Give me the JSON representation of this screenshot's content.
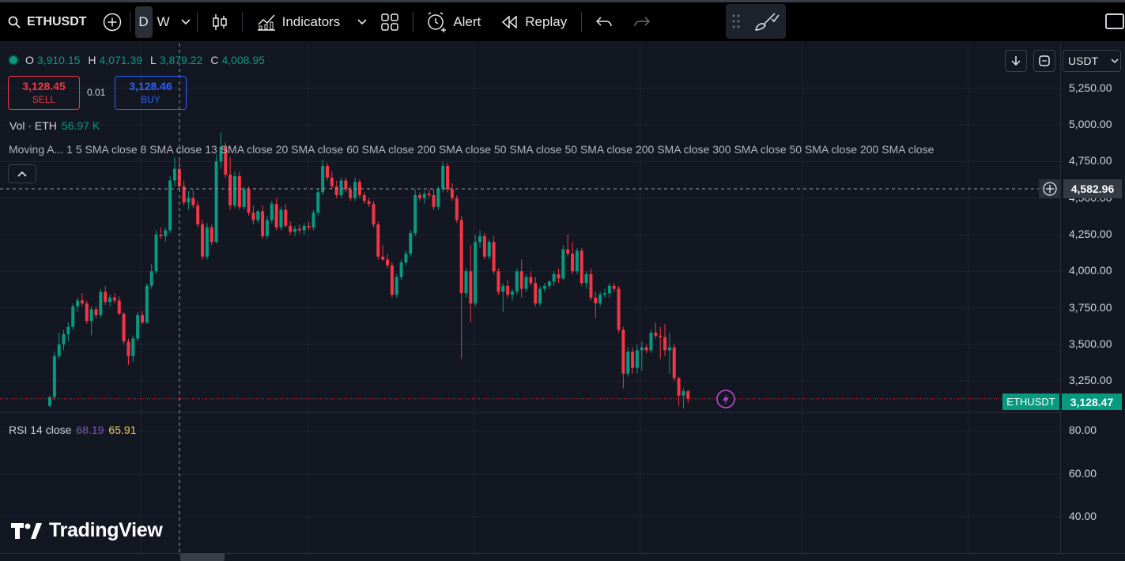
{
  "toolbar": {
    "symbol": "ETHUSDT",
    "interval_d": "D",
    "interval_w": "W",
    "indicators_label": "Indicators",
    "alert_label": "Alert",
    "replay_label": "Replay",
    "icons": [
      "search-icon",
      "add-symbol-icon",
      "chevron-down-icon",
      "candles-icon",
      "indicators-icon",
      "layouts-icon",
      "alert-icon",
      "replay-icon",
      "undo-icon",
      "redo-icon",
      "drag-handle-icon",
      "brush-icon",
      "window-icon"
    ]
  },
  "legend": {
    "ohlc": {
      "o_label": "O",
      "o_value": "3,910.15",
      "h_label": "H",
      "h_value": "4,071.39",
      "l_label": "L",
      "l_value": "3,879.22",
      "c_label": "C",
      "c_value": "4,008.95"
    },
    "sell_price": "3,128.45",
    "sell_label": "SELL",
    "spread": "0.01",
    "buy_price": "3,128.46",
    "buy_label": "BUY",
    "volume_label": "Vol · ETH",
    "volume_value": "56.97 K",
    "moving_averages": "Moving A...  1 5 SMA close 8 SMA close 13 SMA close 20 SMA close 60 SMA close 200 SMA close 50 SMA close 50 SMA close 200 SMA close 300 SMA close 50 SMA close 200 SMA close",
    "rsi_label": "RSI 14 close",
    "rsi_value_1": "68.19",
    "rsi_value_2": "65.91"
  },
  "price_scale": {
    "currency": "USDT",
    "ticks": [
      "5,250.00",
      "5,000.00",
      "4,750.00",
      "4,500.00",
      "4,250.00",
      "4,000.00",
      "3,750.00",
      "3,500.00",
      "3,250.00"
    ],
    "rsi_ticks": [
      "80.00",
      "60.00",
      "40.00"
    ],
    "crosshair_price": "4,582.96",
    "symbol_label": "ETHUSDT",
    "last_price": "3,128.47"
  },
  "brand": "TradingView",
  "colors": {
    "up": "#089981",
    "down": "#f23645",
    "background": "#131722",
    "grid": "#1f2330"
  },
  "chart_data": {
    "type": "candlestick",
    "x": [
      1,
      2,
      3,
      4,
      5,
      6,
      7,
      8,
      9,
      10,
      11,
      12,
      13,
      14,
      15,
      16,
      17,
      18,
      19,
      20,
      21,
      22,
      23,
      24,
      25,
      26,
      27,
      28,
      29,
      30,
      31,
      32,
      33,
      34,
      35,
      36,
      37,
      38,
      39,
      40,
      41,
      42,
      43,
      44,
      45,
      46,
      47,
      48,
      49,
      50,
      51,
      52,
      53,
      54,
      55,
      56,
      57,
      58,
      59,
      60,
      61,
      62,
      63,
      64,
      65,
      66,
      67,
      68,
      69,
      70,
      71,
      72,
      73,
      74,
      75,
      76,
      77,
      78,
      79,
      80,
      81,
      82,
      83,
      84,
      85,
      86,
      87,
      88,
      89,
      90,
      91,
      92,
      93,
      94,
      95,
      96,
      97,
      98,
      99,
      100,
      101,
      102,
      103,
      104,
      105,
      106,
      107,
      108,
      109,
      110,
      111,
      112,
      113,
      114,
      115,
      116,
      117,
      118,
      119,
      120,
      121,
      122,
      123,
      124,
      125,
      126,
      127,
      128,
      129,
      130,
      131,
      132,
      133,
      134,
      135,
      136,
      137,
      138,
      139,
      140,
      141,
      142,
      143,
      144,
      145,
      146,
      147
    ],
    "series": [
      {
        "values": [
          [
            3080,
            3150,
            3070,
            3140
          ],
          [
            3140,
            3450,
            3120,
            3420
          ],
          [
            3420,
            3580,
            3400,
            3500
          ],
          [
            3500,
            3600,
            3460,
            3570
          ],
          [
            3570,
            3650,
            3520,
            3620
          ],
          [
            3620,
            3780,
            3600,
            3760
          ],
          [
            3760,
            3820,
            3720,
            3800
          ],
          [
            3800,
            3850,
            3760,
            3780
          ],
          [
            3780,
            3800,
            3640,
            3660
          ],
          [
            3660,
            3760,
            3560,
            3740
          ],
          [
            3740,
            3760,
            3680,
            3700
          ],
          [
            3700,
            3880,
            3680,
            3860
          ],
          [
            3860,
            3900,
            3770,
            3790
          ],
          [
            3790,
            3840,
            3760,
            3820
          ],
          [
            3820,
            3850,
            3780,
            3800
          ],
          [
            3800,
            3830,
            3700,
            3710
          ],
          [
            3710,
            3720,
            3500,
            3520
          ],
          [
            3520,
            3540,
            3360,
            3420
          ],
          [
            3420,
            3560,
            3380,
            3540
          ],
          [
            3540,
            3720,
            3520,
            3700
          ],
          [
            3700,
            3730,
            3640,
            3650
          ],
          [
            3650,
            3920,
            3640,
            3900
          ],
          [
            3900,
            4050,
            3880,
            4000
          ],
          [
            4000,
            4280,
            3980,
            4250
          ],
          [
            4250,
            4300,
            4220,
            4240
          ],
          [
            4240,
            4300,
            4200,
            4280
          ],
          [
            4280,
            4650,
            4260,
            4620
          ],
          [
            4620,
            4780,
            4580,
            4700
          ],
          [
            4700,
            4760,
            4560,
            4580
          ],
          [
            4580,
            4620,
            4450,
            4470
          ],
          [
            4470,
            4550,
            4420,
            4500
          ],
          [
            4500,
            4560,
            4430,
            4450
          ],
          [
            4450,
            4480,
            4300,
            4320
          ],
          [
            4320,
            4350,
            4080,
            4100
          ],
          [
            4100,
            4330,
            4080,
            4300
          ],
          [
            4300,
            4320,
            4180,
            4200
          ],
          [
            4200,
            4800,
            4190,
            4750
          ],
          [
            4750,
            4950,
            4700,
            4850
          ],
          [
            4850,
            4880,
            4640,
            4660
          ],
          [
            4660,
            4780,
            4420,
            4450
          ],
          [
            4450,
            4680,
            4430,
            4650
          ],
          [
            4650,
            4680,
            4420,
            4440
          ],
          [
            4440,
            4580,
            4420,
            4560
          ],
          [
            4560,
            4580,
            4380,
            4400
          ],
          [
            4400,
            4450,
            4320,
            4350
          ],
          [
            4350,
            4420,
            4330,
            4410
          ],
          [
            4410,
            4450,
            4220,
            4240
          ],
          [
            4240,
            4380,
            4220,
            4350
          ],
          [
            4350,
            4480,
            4330,
            4460
          ],
          [
            4460,
            4500,
            4280,
            4300
          ],
          [
            4300,
            4440,
            4280,
            4420
          ],
          [
            4420,
            4460,
            4300,
            4310
          ],
          [
            4310,
            4340,
            4250,
            4270
          ],
          [
            4270,
            4310,
            4240,
            4290
          ],
          [
            4290,
            4320,
            4260,
            4280
          ],
          [
            4280,
            4330,
            4250,
            4310
          ],
          [
            4310,
            4340,
            4280,
            4300
          ],
          [
            4300,
            4420,
            4280,
            4400
          ],
          [
            4400,
            4560,
            4380,
            4540
          ],
          [
            4540,
            4760,
            4520,
            4720
          ],
          [
            4720,
            4740,
            4620,
            4640
          ],
          [
            4640,
            4680,
            4560,
            4580
          ],
          [
            4580,
            4620,
            4500,
            4520
          ],
          [
            4520,
            4640,
            4500,
            4620
          ],
          [
            4620,
            4640,
            4540,
            4560
          ],
          [
            4560,
            4580,
            4480,
            4500
          ],
          [
            4500,
            4640,
            4480,
            4610
          ],
          [
            4610,
            4630,
            4500,
            4520
          ],
          [
            4520,
            4540,
            4460,
            4480
          ],
          [
            4480,
            4500,
            4440,
            4460
          ],
          [
            4460,
            4480,
            4300,
            4320
          ],
          [
            4320,
            4340,
            4080,
            4100
          ],
          [
            4100,
            4180,
            4070,
            4080
          ],
          [
            4080,
            4120,
            4020,
            4040
          ],
          [
            4040,
            4060,
            3820,
            3840
          ],
          [
            3840,
            3980,
            3820,
            3960
          ],
          [
            3960,
            4080,
            3940,
            4060
          ],
          [
            4060,
            4140,
            4040,
            4120
          ],
          [
            4120,
            4280,
            4100,
            4260
          ],
          [
            4260,
            4560,
            4240,
            4520
          ],
          [
            4520,
            4540,
            4480,
            4500
          ],
          [
            4500,
            4550,
            4460,
            4530
          ],
          [
            4530,
            4560,
            4500,
            4520
          ],
          [
            4520,
            4560,
            4420,
            4440
          ],
          [
            4440,
            4580,
            4420,
            4560
          ],
          [
            4560,
            4750,
            4540,
            4720
          ],
          [
            4720,
            4740,
            4540,
            4560
          ],
          [
            4560,
            4600,
            4480,
            4500
          ],
          [
            4500,
            4520,
            4330,
            4350
          ],
          [
            4350,
            4380,
            3400,
            3850
          ],
          [
            3850,
            4020,
            3820,
            4000
          ],
          [
            4000,
            4180,
            3650,
            3780
          ],
          [
            3780,
            4250,
            3760,
            4200
          ],
          [
            4200,
            4280,
            4160,
            4240
          ],
          [
            4240,
            4260,
            4080,
            4100
          ],
          [
            4100,
            4220,
            4080,
            4200
          ],
          [
            4200,
            4240,
            3980,
            4000
          ],
          [
            4000,
            4020,
            3840,
            3860
          ],
          [
            3860,
            3920,
            3720,
            3900
          ],
          [
            3900,
            3940,
            3820,
            3840
          ],
          [
            3840,
            3880,
            3800,
            3860
          ],
          [
            3860,
            4020,
            3840,
            4000
          ],
          [
            4000,
            4080,
            3820,
            3880
          ],
          [
            3880,
            3980,
            3860,
            3960
          ],
          [
            3960,
            4000,
            3900,
            3920
          ],
          [
            3920,
            3960,
            3760,
            3780
          ],
          [
            3780,
            3900,
            3760,
            3880
          ],
          [
            3880,
            3920,
            3860,
            3900
          ],
          [
            3900,
            3940,
            3880,
            3930
          ],
          [
            3930,
            4000,
            3900,
            3980
          ],
          [
            3980,
            4020,
            3920,
            3950
          ],
          [
            3950,
            4180,
            3940,
            4150
          ],
          [
            4150,
            4250,
            4100,
            4120
          ],
          [
            4120,
            4200,
            3980,
            4000
          ],
          [
            4000,
            4160,
            3980,
            4140
          ],
          [
            4140,
            4160,
            3900,
            3920
          ],
          [
            3920,
            4000,
            3880,
            3980
          ],
          [
            3980,
            4020,
            3800,
            3820
          ],
          [
            3820,
            3860,
            3680,
            3780
          ],
          [
            3780,
            3860,
            3760,
            3840
          ],
          [
            3840,
            3880,
            3820,
            3850
          ],
          [
            3850,
            3920,
            3820,
            3900
          ],
          [
            3900,
            3920,
            3860,
            3880
          ],
          [
            3880,
            3900,
            3580,
            3600
          ],
          [
            3600,
            3620,
            3200,
            3300
          ],
          [
            3300,
            3480,
            3280,
            3450
          ],
          [
            3450,
            3480,
            3300,
            3340
          ],
          [
            3340,
            3500,
            3300,
            3460
          ],
          [
            3460,
            3520,
            3320,
            3480
          ],
          [
            3480,
            3500,
            3440,
            3460
          ],
          [
            3460,
            3600,
            3440,
            3580
          ],
          [
            3580,
            3650,
            3540,
            3560
          ],
          [
            3560,
            3620,
            3400,
            3550
          ],
          [
            3550,
            3640,
            3420,
            3460
          ],
          [
            3460,
            3580,
            3300,
            3480
          ],
          [
            3480,
            3500,
            3250,
            3270
          ],
          [
            3270,
            3280,
            3080,
            3150
          ],
          [
            3150,
            3200,
            3060,
            3180
          ],
          [
            3180,
            3190,
            3100,
            3128
          ]
        ]
      }
    ],
    "ylim": [
      3000,
      5350
    ]
  }
}
